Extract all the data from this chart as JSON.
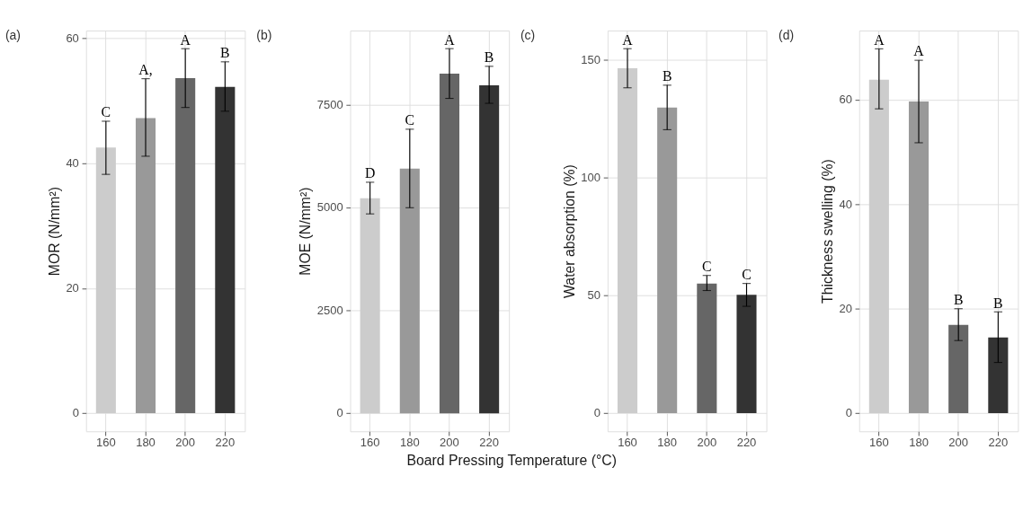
{
  "chart_data": [
    {
      "type": "bar",
      "title": "(a)",
      "ylabel": "MOR (N/mm²)",
      "categories": [
        "160",
        "180",
        "200",
        "220"
      ],
      "values": [
        42.5,
        47.2,
        53.6,
        52.2
      ],
      "colors": [
        "#cccccc",
        "#999999",
        "#666666",
        "#333333"
      ],
      "errors": [
        [
          38.2,
          46.7
        ],
        [
          41.1,
          53.5
        ],
        [
          48.9,
          58.3
        ],
        [
          48.3,
          56.2
        ]
      ],
      "ylim": [
        -2.9,
        61.2
      ],
      "yticks": [
        0,
        20,
        40,
        60
      ],
      "grid": true,
      "annotations": [
        {
          "text": "C",
          "x": "160",
          "y": 46.7
        },
        {
          "text": "A,",
          "x": "180",
          "y": 53.5
        },
        {
          "text": "A",
          "x": "200",
          "y": 58.3
        },
        {
          "text": "B",
          "x": "220",
          "y": 56.2
        }
      ]
    },
    {
      "type": "bar",
      "title": "(b)",
      "ylabel": "MOE (N/mm²)",
      "categories": [
        "160",
        "180",
        "200",
        "220"
      ],
      "values": [
        5230,
        5950,
        8260,
        7980
      ],
      "colors": [
        "#cccccc",
        "#999999",
        "#666666",
        "#333333"
      ],
      "errors": [
        [
          4850,
          5620
        ],
        [
          5000,
          6910
        ],
        [
          7660,
          8870
        ],
        [
          7540,
          8440
        ]
      ],
      "ylim": [
        -440,
        9310
      ],
      "yticks": [
        0,
        2500,
        5000,
        7500
      ],
      "grid": true,
      "annotations": [
        "Board Pressing Temperature (°C)",
        {
          "text": "D",
          "x": "160",
          "y": 5620
        },
        {
          "text": "C",
          "x": "180",
          "y": 6910
        },
        {
          "text": "A",
          "x": "200",
          "y": 8870
        },
        {
          "text": "B",
          "x": "220",
          "y": 8440
        }
      ]
    },
    {
      "type": "bar",
      "title": "(c)",
      "ylabel": "Water absorption (%)",
      "categories": [
        "160",
        "180",
        "200",
        "220"
      ],
      "values": [
        146.5,
        129.8,
        55.1,
        50.3
      ],
      "colors": [
        "#cccccc",
        "#999999",
        "#666666",
        "#333333"
      ],
      "errors": [
        [
          138.2,
          154.8
        ],
        [
          120.4,
          139.3
        ],
        [
          52.1,
          58.5
        ],
        [
          45.4,
          55.1
        ]
      ],
      "ylim": [
        -7.7,
        162.5
      ],
      "yticks": [
        0,
        50,
        100,
        150
      ],
      "grid": true,
      "annotations": [
        {
          "text": "A",
          "x": "160",
          "y": 154.8
        },
        {
          "text": "B",
          "x": "180",
          "y": 139.3
        },
        {
          "text": "C",
          "x": "200",
          "y": 58.5
        },
        {
          "text": "C",
          "x": "220",
          "y": 55.1
        }
      ]
    },
    {
      "type": "bar",
      "title": "(d)",
      "ylabel": "Thickness swelling (%)",
      "categories": [
        "160",
        "180",
        "200",
        "220"
      ],
      "values": [
        63.9,
        59.7,
        16.9,
        14.5
      ],
      "colors": [
        "#cccccc",
        "#999999",
        "#666666",
        "#333333"
      ],
      "errors": [
        [
          58.3,
          69.8
        ],
        [
          51.8,
          67.6
        ],
        [
          13.9,
          20.0
        ],
        [
          9.7,
          19.4
        ]
      ],
      "ylim": [
        -3.5,
        73.3
      ],
      "yticks": [
        0,
        20,
        40,
        60
      ],
      "grid": true,
      "annotations": [
        {
          "text": "A",
          "x": "160",
          "y": 69.8
        },
        {
          "text": "A",
          "x": "180",
          "y": 67.6
        },
        {
          "text": "B",
          "x": "200",
          "y": 20.0
        },
        {
          "text": "B",
          "x": "220",
          "y": 19.4
        }
      ]
    }
  ]
}
